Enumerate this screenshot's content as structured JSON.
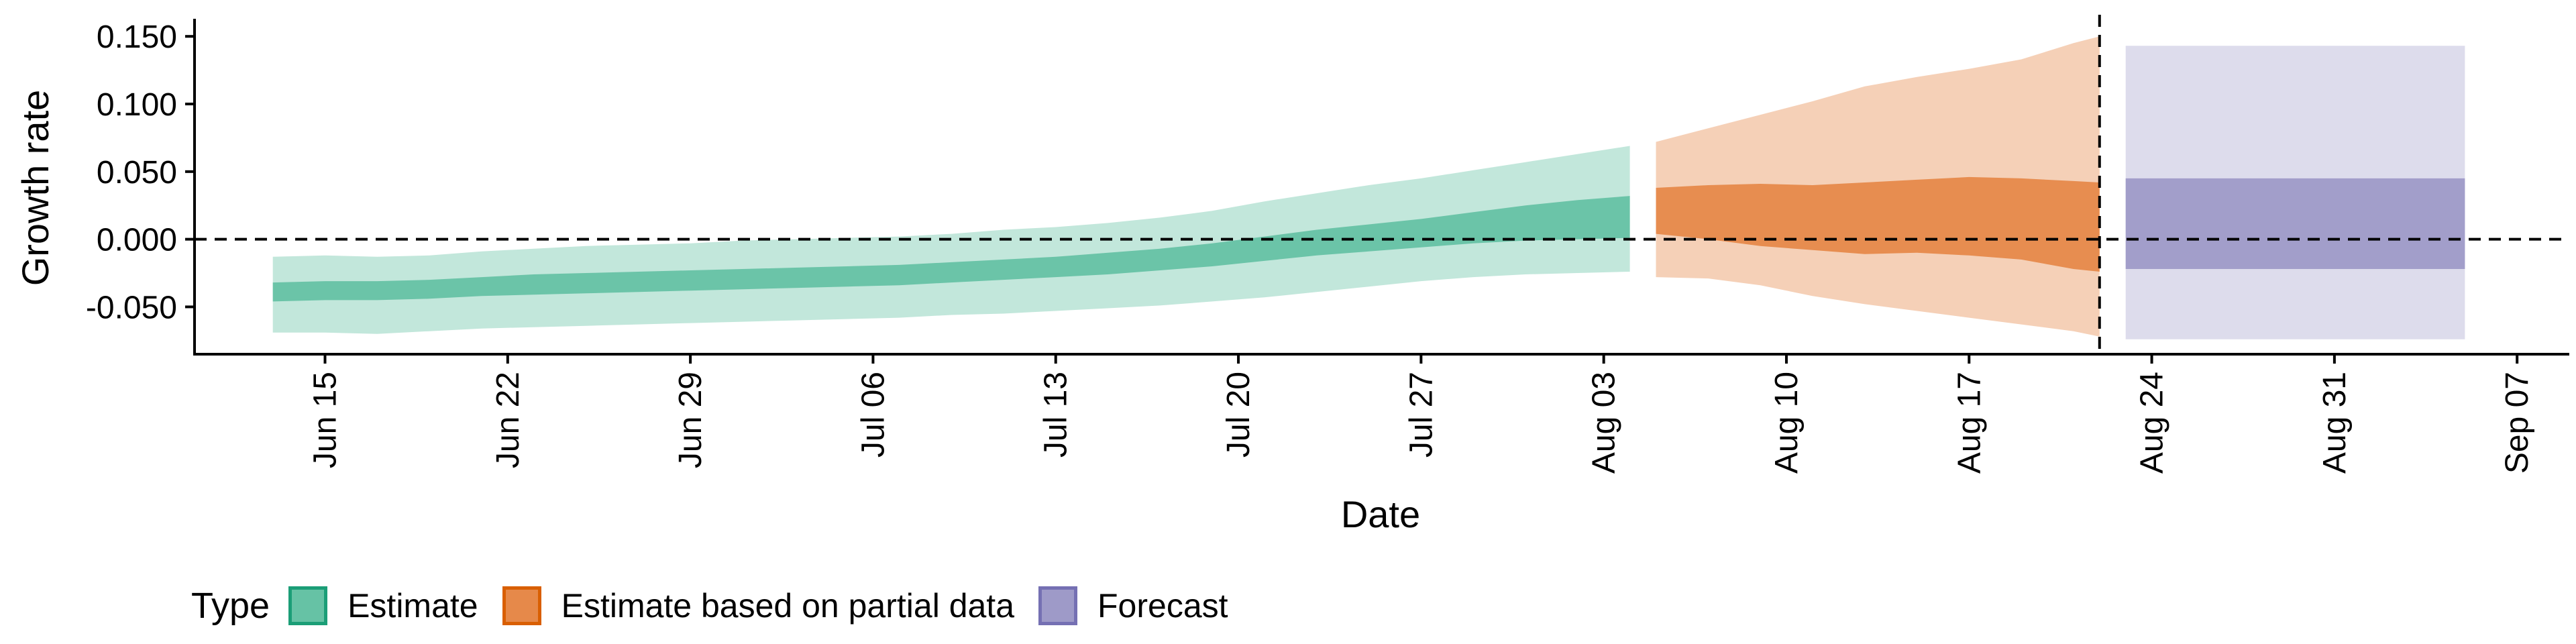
{
  "chart_data": {
    "type": "area",
    "xlabel": "Date",
    "ylabel": "Growth rate",
    "ylim": [
      -0.085,
      0.163
    ],
    "xlim": [
      "2020-06-10",
      "2020-09-09"
    ],
    "x_ticks": [
      "Jun 15",
      "Jun 22",
      "Jun 29",
      "Jul 06",
      "Jul 13",
      "Jul 20",
      "Jul 27",
      "Aug 03",
      "Aug 10",
      "Aug 17",
      "Aug 24",
      "Aug 31",
      "Sep 07"
    ],
    "x_tick_dates": [
      "2020-06-15",
      "2020-06-22",
      "2020-06-29",
      "2020-07-06",
      "2020-07-13",
      "2020-07-20",
      "2020-07-27",
      "2020-08-03",
      "2020-08-10",
      "2020-08-17",
      "2020-08-24",
      "2020-08-31",
      "2020-09-07"
    ],
    "y_ticks": [
      "-0.050",
      "0.000",
      "0.050",
      "0.100",
      "0.150"
    ],
    "y_tick_values": [
      -0.05,
      0.0,
      0.05,
      0.1,
      0.15
    ],
    "hline": 0.0,
    "vline": "2020-08-22",
    "grid": false,
    "legend_position": "bottom-left",
    "legend": {
      "title": "Type",
      "items": [
        {
          "label": "Estimate",
          "color": "#66c2a5"
        },
        {
          "label": "Estimate based on partial data",
          "color": "#e6894a"
        },
        {
          "label": "Forecast",
          "color": "#9e9ac8"
        }
      ]
    },
    "series": [
      {
        "name": "Estimate",
        "color": "#66c2a5",
        "outer_opacity": 0.4,
        "x": [
          "2020-06-13",
          "2020-06-15",
          "2020-06-17",
          "2020-06-19",
          "2020-06-21",
          "2020-06-23",
          "2020-06-25",
          "2020-06-27",
          "2020-06-29",
          "2020-07-01",
          "2020-07-03",
          "2020-07-05",
          "2020-07-07",
          "2020-07-09",
          "2020-07-11",
          "2020-07-13",
          "2020-07-15",
          "2020-07-17",
          "2020-07-19",
          "2020-07-21",
          "2020-07-23",
          "2020-07-25",
          "2020-07-27",
          "2020-07-29",
          "2020-07-31",
          "2020-08-02",
          "2020-08-04"
        ],
        "upper_90": [
          -0.013,
          -0.012,
          -0.013,
          -0.012,
          -0.009,
          -0.007,
          -0.005,
          -0.004,
          -0.003,
          -0.001,
          0.0,
          0.001,
          0.002,
          0.004,
          0.007,
          0.009,
          0.012,
          0.016,
          0.021,
          0.028,
          0.034,
          0.04,
          0.045,
          0.051,
          0.057,
          0.063,
          0.069
        ],
        "upper_50": [
          -0.032,
          -0.031,
          -0.031,
          -0.03,
          -0.028,
          -0.026,
          -0.025,
          -0.024,
          -0.023,
          -0.022,
          -0.021,
          -0.02,
          -0.019,
          -0.017,
          -0.015,
          -0.013,
          -0.01,
          -0.007,
          -0.003,
          0.002,
          0.007,
          0.011,
          0.015,
          0.02,
          0.025,
          0.029,
          0.032
        ],
        "lower_50": [
          -0.046,
          -0.045,
          -0.045,
          -0.044,
          -0.042,
          -0.041,
          -0.04,
          -0.039,
          -0.038,
          -0.037,
          -0.036,
          -0.035,
          -0.034,
          -0.032,
          -0.03,
          -0.028,
          -0.026,
          -0.023,
          -0.02,
          -0.016,
          -0.012,
          -0.009,
          -0.006,
          -0.003,
          -0.001,
          0.0,
          0.001
        ],
        "lower_90": [
          -0.069,
          -0.069,
          -0.07,
          -0.068,
          -0.066,
          -0.065,
          -0.064,
          -0.063,
          -0.062,
          -0.061,
          -0.06,
          -0.059,
          -0.058,
          -0.056,
          -0.055,
          -0.053,
          -0.051,
          -0.049,
          -0.046,
          -0.043,
          -0.039,
          -0.035,
          -0.031,
          -0.028,
          -0.026,
          -0.025,
          -0.024
        ]
      },
      {
        "name": "Estimate based on partial data",
        "color": "#e6894a",
        "outer_opacity": 0.4,
        "x": [
          "2020-08-05",
          "2020-08-07",
          "2020-08-09",
          "2020-08-11",
          "2020-08-13",
          "2020-08-15",
          "2020-08-17",
          "2020-08-19",
          "2020-08-21",
          "2020-08-22"
        ],
        "upper_90": [
          0.072,
          0.082,
          0.092,
          0.102,
          0.113,
          0.12,
          0.126,
          0.133,
          0.145,
          0.15
        ],
        "upper_50": [
          0.038,
          0.04,
          0.041,
          0.04,
          0.042,
          0.044,
          0.046,
          0.045,
          0.043,
          0.042
        ],
        "lower_50": [
          0.004,
          0.0,
          -0.005,
          -0.008,
          -0.011,
          -0.01,
          -0.012,
          -0.015,
          -0.022,
          -0.024
        ],
        "lower_90": [
          -0.028,
          -0.029,
          -0.034,
          -0.042,
          -0.048,
          -0.053,
          -0.058,
          -0.063,
          -0.068,
          -0.072
        ]
      },
      {
        "name": "Forecast",
        "color": "#9e9ac8",
        "outer_opacity": 0.35,
        "x": [
          "2020-08-23",
          "2020-09-05"
        ],
        "upper_90": [
          0.143,
          0.143
        ],
        "upper_50": [
          0.045,
          0.045
        ],
        "lower_50": [
          -0.022,
          -0.022
        ],
        "lower_90": [
          -0.074,
          -0.074
        ]
      }
    ]
  }
}
